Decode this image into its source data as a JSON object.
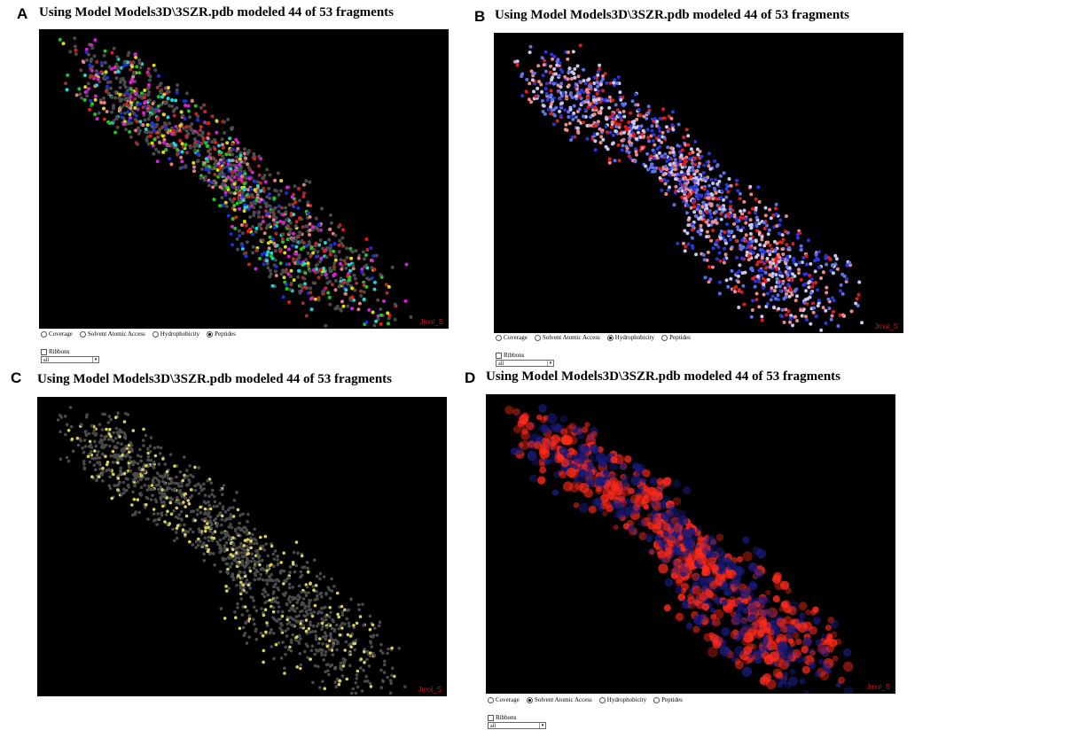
{
  "panels": {
    "a": {
      "letter": "A",
      "title": "Using Model Models3D\\3SZR.pdb modeled 44 of 53 fragments",
      "jmol": "Jmol_S",
      "selected_mode": "Peptides"
    },
    "b": {
      "letter": "B",
      "title": "Using Model Models3D\\3SZR.pdb modeled 44 of 53 fragments",
      "jmol": "Jmol_S",
      "selected_mode": "Hydrophobicity"
    },
    "c": {
      "letter": "C",
      "title": "Using Model Models3D\\3SZR.pdb modeled 44 of 53 fragments",
      "jmol": "Jmol_S",
      "selected_mode": ""
    },
    "d": {
      "letter": "D",
      "title": "Using Model Models3D\\3SZR.pdb modeled 44 of 53 fragments",
      "jmol": "Jmol_S",
      "selected_mode": "Solvent Atomic Access"
    }
  },
  "controls": {
    "modes": [
      "Coverage",
      "Solvent Atomic Access",
      "Hydrophobicity",
      "Peptides"
    ],
    "ribbons_label": "Ribbons",
    "select_value": "all"
  },
  "colors": {
    "viewer_bg": "#000000",
    "gray_atoms": "#4a4a4a",
    "peptide_palette": [
      "#e01b1b",
      "#1e2fd8",
      "#22c41e",
      "#d8d818",
      "#d61fd6",
      "#1fd6d6",
      "#e08080",
      "#a03030"
    ],
    "hydro_palette": [
      "#d81e1e",
      "#2a36d8",
      "#f08a8a",
      "#c8c8f0",
      "#6070e8"
    ],
    "highlight_yellow": "#d8d060",
    "surface_red": "#ff2a1a",
    "jmol_label": "#c01818"
  }
}
